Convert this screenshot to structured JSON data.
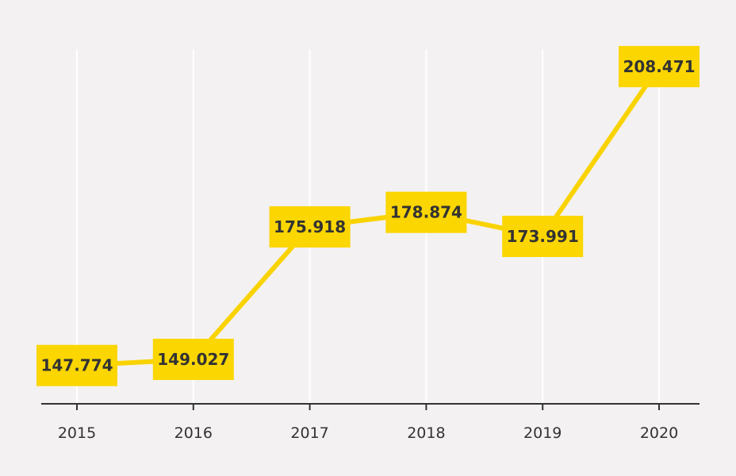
{
  "chart_data": {
    "type": "line",
    "categories": [
      "2015",
      "2016",
      "2017",
      "2018",
      "2019",
      "2020"
    ],
    "values": [
      147774,
      149027,
      175918,
      178874,
      173991,
      208471
    ],
    "data_labels": [
      "147.774",
      "149.027",
      "175.918",
      "178.874",
      "173.991",
      "208.471"
    ],
    "title": "",
    "xlabel": "",
    "ylabel": "",
    "ylim": [
      140000,
      212000
    ],
    "grid": "vertical",
    "legend": "none",
    "colors": {
      "line": "#f9d300",
      "label_box": "#fbd600",
      "text": "#333333",
      "grid": "#ffffff",
      "axis": "#333333",
      "background": "#f3f1f1"
    }
  }
}
